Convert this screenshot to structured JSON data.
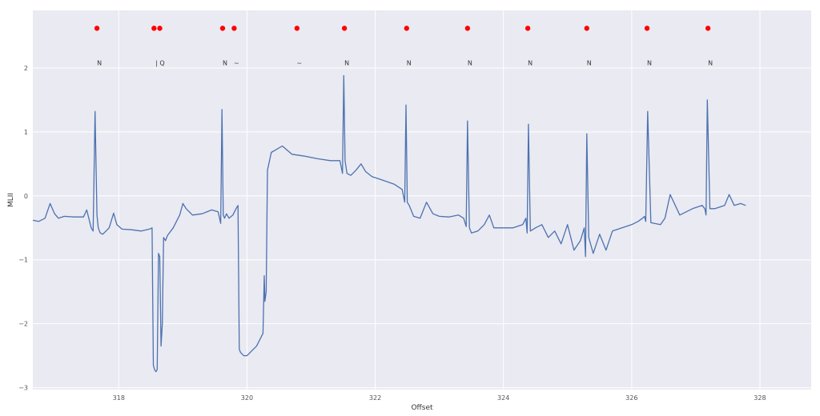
{
  "chart_data": {
    "type": "line",
    "title": "",
    "xlabel": "Offset",
    "ylabel": "MLII",
    "xlim": [
      316.66,
      328.8
    ],
    "ylim": [
      -3.03,
      2.9
    ],
    "grid": true,
    "legend": null,
    "background": "#eaeaf2",
    "line_color": "#4c72b0",
    "marker_color": "#ff0000",
    "x_ticks": [
      318,
      320,
      322,
      324,
      326,
      328
    ],
    "x_tick_labels": [
      "318",
      "320",
      "322",
      "324",
      "326",
      "328"
    ],
    "y_ticks": [
      2,
      1,
      0,
      -1,
      -2,
      -3
    ],
    "y_tick_labels": [
      "2",
      "1",
      "0",
      "−1",
      "−2",
      "−3"
    ],
    "annotation_marker_y": 2.62,
    "annotation_label_y": 2.08,
    "annotations": [
      {
        "x": 317.66,
        "label": "N"
      },
      {
        "x": 318.55,
        "label": "|"
      },
      {
        "x": 318.64,
        "label": "Q"
      },
      {
        "x": 319.62,
        "label": "N"
      },
      {
        "x": 319.8,
        "label": "~"
      },
      {
        "x": 320.78,
        "label": "~"
      },
      {
        "x": 321.52,
        "label": "N"
      },
      {
        "x": 322.49,
        "label": "N"
      },
      {
        "x": 323.44,
        "label": "N"
      },
      {
        "x": 324.38,
        "label": "N"
      },
      {
        "x": 325.3,
        "label": "N"
      },
      {
        "x": 326.24,
        "label": "N"
      },
      {
        "x": 327.19,
        "label": "N"
      }
    ],
    "series": [
      {
        "name": "MLII",
        "x": [
          316.66,
          316.75,
          316.85,
          316.93,
          317.0,
          317.06,
          317.15,
          317.3,
          317.45,
          317.5,
          317.54,
          317.57,
          317.6,
          317.63,
          317.66,
          317.68,
          317.71,
          317.75,
          317.85,
          317.92,
          317.97,
          318.05,
          318.2,
          318.35,
          318.48,
          318.52,
          318.54,
          318.56,
          318.58,
          318.6,
          318.62,
          318.64,
          318.66,
          318.68,
          318.7,
          318.73,
          318.76,
          318.85,
          318.95,
          319.0,
          319.05,
          319.15,
          319.3,
          319.45,
          319.55,
          319.59,
          319.61,
          319.63,
          319.65,
          319.68,
          319.72,
          319.78,
          319.83,
          319.86,
          319.88,
          319.9,
          319.95,
          320.0,
          320.05,
          320.1,
          320.15,
          320.2,
          320.25,
          320.27,
          320.28,
          320.3,
          320.32,
          320.38,
          320.45,
          320.55,
          320.7,
          320.9,
          321.1,
          321.3,
          321.45,
          321.49,
          321.51,
          321.53,
          321.56,
          321.62,
          321.7,
          321.78,
          321.85,
          321.95,
          322.1,
          322.3,
          322.42,
          322.46,
          322.48,
          322.5,
          322.53,
          322.6,
          322.7,
          322.8,
          322.9,
          323.0,
          323.15,
          323.3,
          323.38,
          323.42,
          323.44,
          323.47,
          323.5,
          323.6,
          323.7,
          323.78,
          323.85,
          324.0,
          324.15,
          324.3,
          324.35,
          324.37,
          324.39,
          324.42,
          324.5,
          324.6,
          324.7,
          324.8,
          324.9,
          325.0,
          325.1,
          325.2,
          325.26,
          325.28,
          325.3,
          325.33,
          325.4,
          325.5,
          325.6,
          325.7,
          325.85,
          326.0,
          326.1,
          326.17,
          326.2,
          326.22,
          326.25,
          326.3,
          326.45,
          326.52,
          326.6,
          326.75,
          326.95,
          327.1,
          327.14,
          327.16,
          327.18,
          327.22,
          327.3,
          327.45,
          327.52,
          327.6,
          327.7,
          327.78
        ],
        "values": [
          -0.38,
          -0.4,
          -0.35,
          -0.12,
          -0.28,
          -0.35,
          -0.32,
          -0.33,
          -0.33,
          -0.22,
          -0.38,
          -0.5,
          -0.55,
          1.32,
          -0.3,
          -0.5,
          -0.58,
          -0.6,
          -0.5,
          -0.27,
          -0.45,
          -0.52,
          -0.53,
          -0.55,
          -0.52,
          -0.5,
          -2.65,
          -2.72,
          -2.75,
          -2.72,
          -0.9,
          -0.95,
          -2.35,
          -2.0,
          -0.65,
          -0.7,
          -0.62,
          -0.5,
          -0.3,
          -0.12,
          -0.2,
          -0.3,
          -0.28,
          -0.22,
          -0.25,
          -0.43,
          1.35,
          -0.3,
          -0.35,
          -0.28,
          -0.35,
          -0.3,
          -0.2,
          -0.15,
          -2.4,
          -2.45,
          -2.5,
          -2.5,
          -2.45,
          -2.4,
          -2.35,
          -2.25,
          -2.15,
          -1.25,
          -1.65,
          -1.5,
          0.4,
          0.68,
          0.72,
          0.78,
          0.65,
          0.62,
          0.58,
          0.55,
          0.55,
          0.35,
          1.88,
          0.55,
          0.35,
          0.32,
          0.4,
          0.5,
          0.38,
          0.3,
          0.25,
          0.18,
          0.1,
          -0.1,
          1.42,
          -0.1,
          -0.15,
          -0.32,
          -0.35,
          -0.1,
          -0.28,
          -0.32,
          -0.33,
          -0.3,
          -0.35,
          -0.48,
          1.17,
          -0.5,
          -0.58,
          -0.55,
          -0.45,
          -0.3,
          -0.5,
          -0.5,
          -0.5,
          -0.45,
          -0.35,
          -0.58,
          1.12,
          -0.55,
          -0.5,
          -0.45,
          -0.65,
          -0.55,
          -0.75,
          -0.45,
          -0.85,
          -0.7,
          -0.5,
          -0.95,
          0.97,
          -0.65,
          -0.9,
          -0.6,
          -0.85,
          -0.55,
          -0.5,
          -0.45,
          -0.4,
          -0.35,
          -0.32,
          -0.4,
          1.32,
          -0.42,
          -0.45,
          -0.35,
          0.02,
          -0.3,
          -0.2,
          -0.15,
          -0.2,
          -0.3,
          1.5,
          -0.2,
          -0.2,
          -0.15,
          0.02,
          -0.15,
          -0.12,
          -0.15
        ]
      }
    ]
  }
}
